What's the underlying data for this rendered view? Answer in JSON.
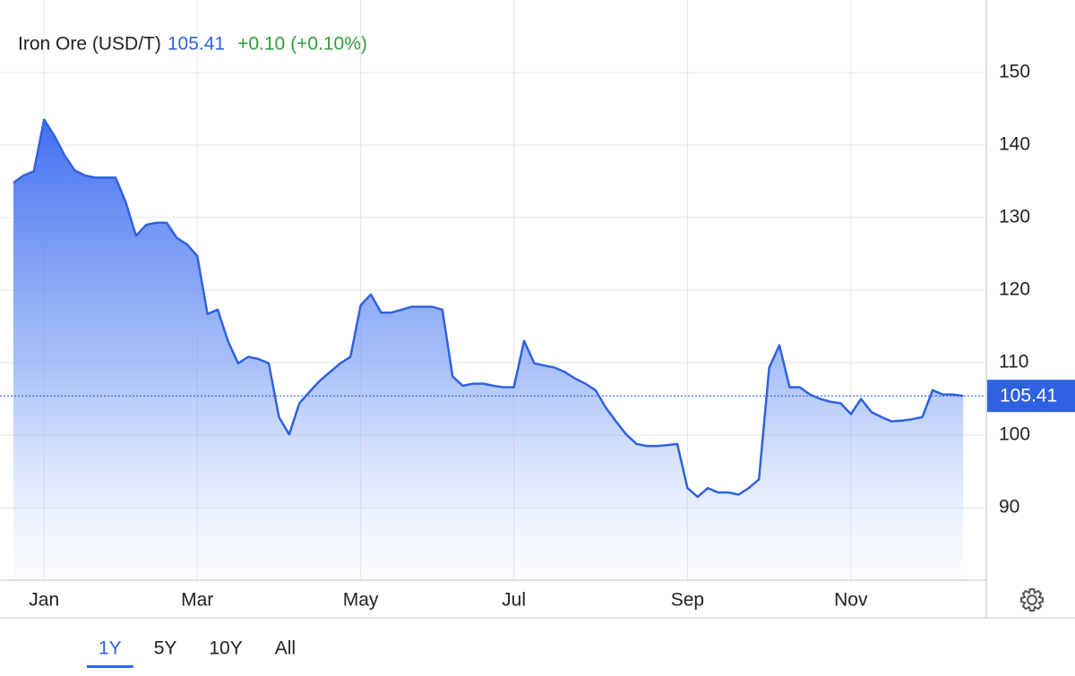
{
  "chart_data": {
    "type": "area",
    "title": "Iron Ore (USD/T)",
    "change_label": "+0.10 (+0.10%)",
    "color": "#2f62e0",
    "categories": [
      null,
      null,
      null,
      "Jan",
      null,
      null,
      null,
      null,
      null,
      null,
      null,
      null,
      null,
      null,
      null,
      null,
      null,
      null,
      "Mar",
      null,
      null,
      null,
      null,
      null,
      null,
      null,
      null,
      null,
      null,
      null,
      null,
      null,
      null,
      null,
      "May",
      null,
      null,
      null,
      null,
      null,
      null,
      null,
      null,
      null,
      null,
      null,
      null,
      null,
      null,
      "Jul",
      null,
      null,
      null,
      null,
      null,
      null,
      null,
      null,
      null,
      null,
      null,
      null,
      null,
      null,
      null,
      null,
      "Sep",
      null,
      null,
      null,
      null,
      null,
      null,
      null,
      null,
      null,
      null,
      null,
      null,
      null,
      null,
      null,
      "Nov",
      null,
      null,
      null,
      null,
      null,
      null,
      null,
      null,
      null,
      null,
      null
    ],
    "values": [
      134.8,
      135.8,
      136.4,
      143.5,
      141.3,
      138.6,
      136.5,
      135.8,
      135.5,
      135.5,
      135.5,
      132.1,
      127.5,
      129,
      129.3,
      129.3,
      127.2,
      126.3,
      124.7,
      116.7,
      117.3,
      113.0,
      109.9,
      110.8,
      110.5,
      109.9,
      102.5,
      100.1,
      104.4,
      106.0,
      107.5,
      108.7,
      109.9,
      110.8,
      117.9,
      119.4,
      116.9,
      116.9,
      117.3,
      117.7,
      117.7,
      117.7,
      117.3,
      108.1,
      106.8,
      107.1,
      107.1,
      106.8,
      106.6,
      106.6,
      113.0,
      109.9,
      109.6,
      109.3,
      108.7,
      107.8,
      107.1,
      106.2,
      103.8,
      101.9,
      100.1,
      98.8,
      98.5,
      98.5,
      98.6,
      98.8,
      92.7,
      91.5,
      92.7,
      92.1,
      92.1,
      91.8,
      92.7,
      93.9,
      109.3,
      112.4,
      106.6,
      106.6,
      105.6,
      105.0,
      104.6,
      104.4,
      102.9,
      105.0,
      103.2,
      102.5,
      101.9,
      102.0,
      102.2,
      102.5,
      106.2,
      105.6,
      105.6,
      105.41
    ],
    "ylim": [
      80,
      160
    ],
    "yticks": [
      90,
      100,
      110,
      120,
      130,
      140,
      150
    ],
    "grid": true,
    "ranges": [
      "1Y",
      "5Y",
      "10Y",
      "All"
    ],
    "selected_range": "1Y"
  }
}
